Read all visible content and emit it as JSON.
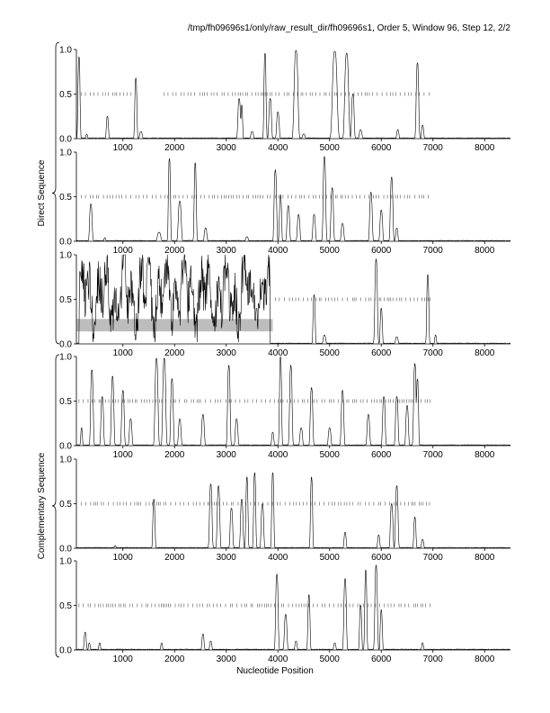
{
  "header": {
    "title": "/tmp/fh09696s1/only/raw_result_dir/fh09696s1, Order 5, Window 96, Step 12, 2/2"
  },
  "groups": {
    "direct_label": "Direct Sequence",
    "complementary_label": "Complementary Sequence"
  },
  "chart_data": {
    "type": "line",
    "xlabel": "Nucleotide Position",
    "xlim": [
      100,
      8500
    ],
    "ylim": [
      0,
      1
    ],
    "x_ticks": [
      1000,
      2000,
      3000,
      4000,
      5000,
      6000,
      7000,
      8000
    ],
    "y_ticks": [
      0.0,
      0.5,
      1.0
    ],
    "y_tick_labels": [
      "0.0",
      "0.5",
      "1.0"
    ],
    "rug_y": 0.5,
    "rug_end": 6950,
    "panels": [
      {
        "name": "direct-frame-1",
        "group": "direct",
        "peaks": [
          [
            150,
            0.92,
            25
          ],
          [
            300,
            0.05,
            20
          ],
          [
            700,
            0.25,
            25
          ],
          [
            1250,
            0.68,
            25
          ],
          [
            1350,
            0.08,
            30
          ],
          [
            3250,
            0.45,
            30
          ],
          [
            3300,
            0.38,
            20
          ],
          [
            3500,
            0.08,
            30
          ],
          [
            3750,
            0.96,
            25
          ],
          [
            3850,
            0.45,
            30
          ],
          [
            4000,
            0.3,
            30
          ],
          [
            4350,
            0.99,
            45
          ],
          [
            4500,
            0.05,
            30
          ],
          [
            5100,
            0.98,
            55
          ],
          [
            5330,
            0.96,
            45
          ],
          [
            5450,
            0.5,
            30
          ],
          [
            5600,
            0.1,
            30
          ],
          [
            6320,
            0.1,
            25
          ],
          [
            6700,
            0.85,
            30
          ],
          [
            6800,
            0.15,
            25
          ]
        ],
        "rug": [
          [
            200,
            1200
          ],
          [
            1800,
            6950
          ]
        ]
      },
      {
        "name": "direct-frame-2",
        "group": "direct",
        "peaks": [
          [
            380,
            0.42,
            30
          ],
          [
            650,
            0.04,
            20
          ],
          [
            1700,
            0.1,
            40
          ],
          [
            1900,
            0.93,
            25
          ],
          [
            2100,
            0.45,
            35
          ],
          [
            2400,
            0.88,
            25
          ],
          [
            2600,
            0.15,
            30
          ],
          [
            3400,
            0.05,
            30
          ],
          [
            3950,
            0.8,
            30
          ],
          [
            4050,
            0.52,
            25
          ],
          [
            4200,
            0.4,
            30
          ],
          [
            4400,
            0.3,
            30
          ],
          [
            4700,
            0.3,
            30
          ],
          [
            4900,
            0.95,
            30
          ],
          [
            5050,
            0.6,
            30
          ],
          [
            5250,
            0.2,
            30
          ],
          [
            5800,
            0.55,
            30
          ],
          [
            6000,
            0.35,
            30
          ],
          [
            6200,
            0.72,
            30
          ],
          [
            6300,
            0.15,
            25
          ]
        ],
        "rug": [
          [
            200,
            6950
          ]
        ]
      },
      {
        "name": "direct-frame-3",
        "group": "direct",
        "peaks": [
          [
            4700,
            0.55,
            25
          ],
          [
            4900,
            0.1,
            30
          ],
          [
            5900,
            0.95,
            30
          ],
          [
            6000,
            0.4,
            25
          ],
          [
            6300,
            0.08,
            30
          ],
          [
            6900,
            0.78,
            25
          ],
          [
            7050,
            0.1,
            20
          ]
        ],
        "noisy": [
          150,
          3850
        ],
        "shade": {
          "x0": 100,
          "x1": 3900,
          "y0": 0.14,
          "y1": 0.28
        },
        "rug": [
          [
            3950,
            6950
          ]
        ]
      },
      {
        "name": "complementary-frame-1",
        "group": "complementary",
        "peaks": [
          [
            200,
            0.2,
            20
          ],
          [
            400,
            0.85,
            30
          ],
          [
            600,
            0.55,
            30
          ],
          [
            800,
            0.78,
            30
          ],
          [
            1000,
            0.62,
            30
          ],
          [
            1150,
            0.3,
            30
          ],
          [
            1650,
            0.98,
            35
          ],
          [
            1800,
            0.98,
            35
          ],
          [
            1950,
            0.75,
            30
          ],
          [
            2100,
            0.3,
            30
          ],
          [
            2550,
            0.35,
            30
          ],
          [
            3050,
            0.9,
            30
          ],
          [
            3200,
            0.3,
            30
          ],
          [
            3900,
            0.15,
            25
          ],
          [
            4050,
            1.0,
            25
          ],
          [
            4250,
            0.9,
            30
          ],
          [
            4450,
            0.2,
            30
          ],
          [
            4650,
            0.65,
            30
          ],
          [
            5000,
            0.2,
            30
          ],
          [
            5250,
            0.62,
            30
          ],
          [
            5750,
            0.35,
            30
          ],
          [
            6050,
            0.55,
            30
          ],
          [
            6300,
            0.55,
            30
          ],
          [
            6500,
            0.45,
            30
          ],
          [
            6650,
            0.92,
            30
          ],
          [
            6700,
            0.75,
            25
          ]
        ],
        "rug": [
          [
            150,
            6950
          ]
        ]
      },
      {
        "name": "complementary-frame-2",
        "group": "complementary",
        "peaks": [
          [
            850,
            0.03,
            20
          ],
          [
            1600,
            0.55,
            25
          ],
          [
            2700,
            0.72,
            30
          ],
          [
            2850,
            0.7,
            30
          ],
          [
            3100,
            0.45,
            30
          ],
          [
            3300,
            0.55,
            30
          ],
          [
            3400,
            0.8,
            25
          ],
          [
            3550,
            0.85,
            25
          ],
          [
            3700,
            0.5,
            30
          ],
          [
            3900,
            0.85,
            25
          ],
          [
            4650,
            0.8,
            25
          ],
          [
            5300,
            0.18,
            25
          ],
          [
            5950,
            0.15,
            25
          ],
          [
            6200,
            0.5,
            30
          ],
          [
            6300,
            0.7,
            30
          ],
          [
            6650,
            0.35,
            25
          ],
          [
            6800,
            0.1,
            25
          ]
        ],
        "rug": [
          [
            200,
            6950
          ]
        ]
      },
      {
        "name": "complementary-frame-3",
        "group": "complementary",
        "peaks": [
          [
            270,
            0.2,
            25
          ],
          [
            350,
            0.08,
            20
          ],
          [
            550,
            0.08,
            20
          ],
          [
            1750,
            0.08,
            20
          ],
          [
            2550,
            0.18,
            25
          ],
          [
            2700,
            0.1,
            25
          ],
          [
            3980,
            0.85,
            30
          ],
          [
            4150,
            0.4,
            30
          ],
          [
            4350,
            0.1,
            25
          ],
          [
            4600,
            0.62,
            25
          ],
          [
            5100,
            0.08,
            25
          ],
          [
            5300,
            0.8,
            30
          ],
          [
            5600,
            0.5,
            25
          ],
          [
            5700,
            0.9,
            25
          ],
          [
            5900,
            0.95,
            30
          ],
          [
            6000,
            0.45,
            25
          ],
          [
            6800,
            0.08,
            20
          ]
        ],
        "rug": [
          [
            150,
            6950
          ]
        ]
      }
    ]
  }
}
